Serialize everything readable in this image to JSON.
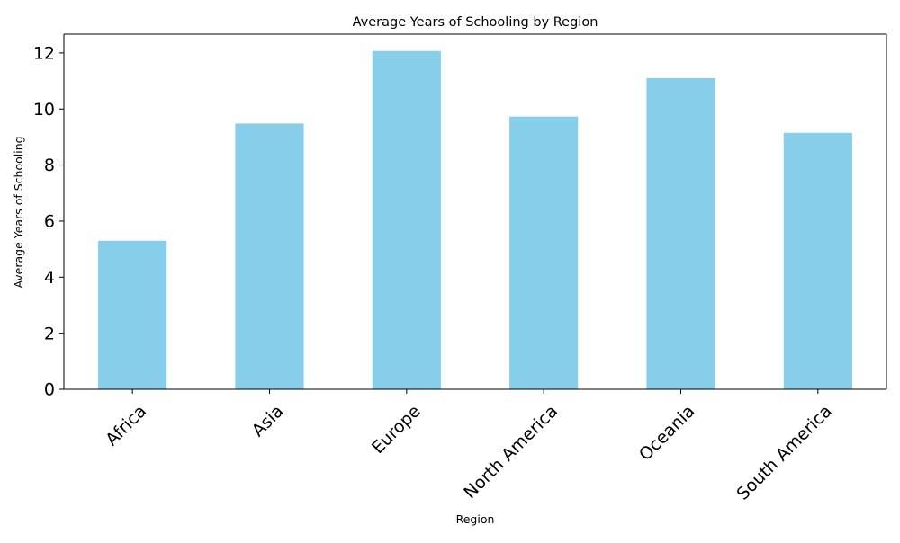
{
  "chart_data": {
    "type": "bar",
    "title": "Average Years of Schooling by Region",
    "xlabel": "Region",
    "ylabel": "Average Years of Schooling",
    "categories": [
      "Africa",
      "Asia",
      "Europe",
      "North America",
      "Oceania",
      "South America"
    ],
    "values": [
      5.3,
      9.48,
      12.07,
      9.73,
      11.1,
      9.15
    ],
    "ylim": [
      0,
      12.67
    ],
    "yticks": [
      "0",
      "2",
      "4",
      "6",
      "8",
      "10",
      "12"
    ],
    "grid": false,
    "legend": "none",
    "colors": {
      "bar": "#87CEEB",
      "axis": "#000000",
      "background": "#ffffff"
    }
  }
}
